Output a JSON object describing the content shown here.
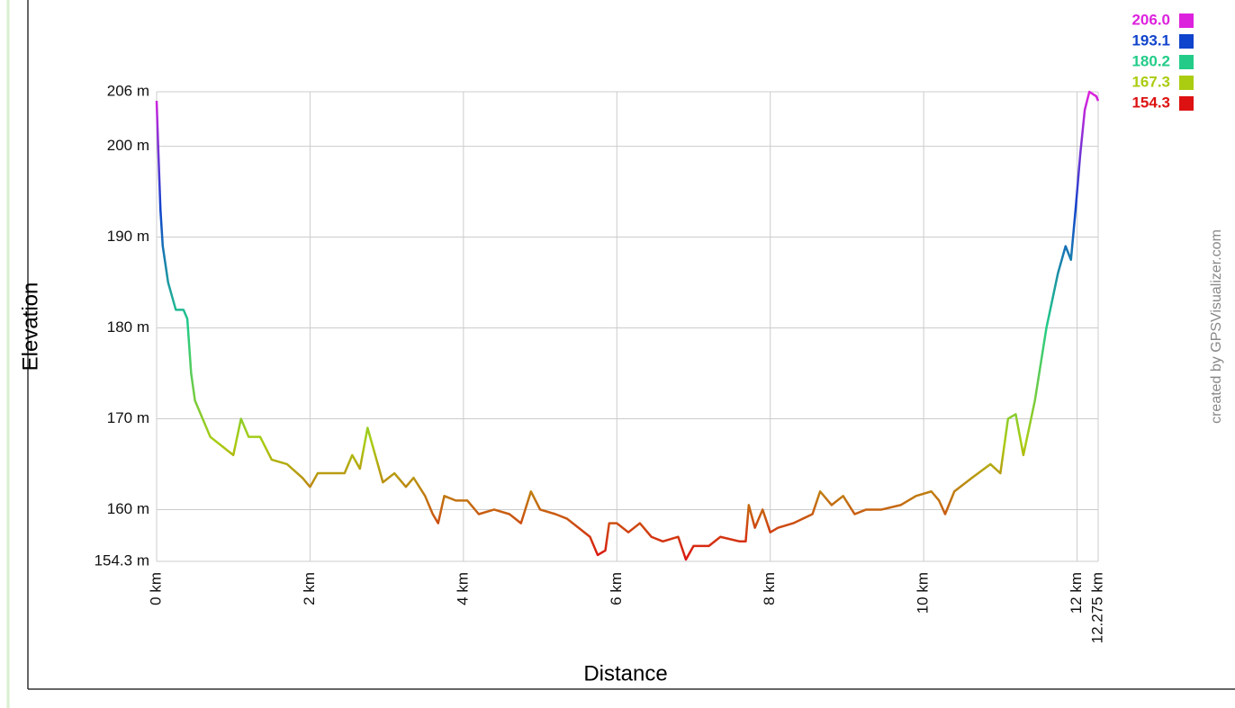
{
  "chart_data": {
    "type": "line",
    "x_label": "Distance",
    "y_label": "Elevation",
    "credit": "created by GPSVisualizer.com",
    "xlim": [
      0,
      12.275
    ],
    "xticks": [
      {
        "value": 0,
        "label": "0 km"
      },
      {
        "value": 2,
        "label": "2 km"
      },
      {
        "value": 4,
        "label": "4 km"
      },
      {
        "value": 6,
        "label": "6 km"
      },
      {
        "value": 8,
        "label": "8 km"
      },
      {
        "value": 10,
        "label": "10 km"
      },
      {
        "value": 12,
        "label": "12 km"
      },
      {
        "value": 12.275,
        "label": "12.275 km"
      }
    ],
    "ylim": [
      154.3,
      206
    ],
    "yticks": [
      {
        "value": 154.3,
        "label": "154.3 m"
      },
      {
        "value": 160,
        "label": "160 m"
      },
      {
        "value": 170,
        "label": "170 m"
      },
      {
        "value": 180,
        "label": "180 m"
      },
      {
        "value": 190,
        "label": "190 m"
      },
      {
        "value": 200,
        "label": "200 m"
      },
      {
        "value": 206,
        "label": "206 m"
      }
    ],
    "grid": true,
    "color_scale": [
      {
        "value": 206.0,
        "label": "206.0",
        "color": "#dd22dd"
      },
      {
        "value": 193.1,
        "label": "193.1",
        "color": "#1144cc"
      },
      {
        "value": 180.2,
        "label": "180.2",
        "color": "#22cc88"
      },
      {
        "value": 167.3,
        "label": "167.3",
        "color": "#aacc11"
      },
      {
        "value": 154.3,
        "label": "154.3",
        "color": "#dd1111"
      }
    ],
    "x": [
      0,
      0.02,
      0.05,
      0.08,
      0.15,
      0.25,
      0.35,
      0.4,
      0.45,
      0.5,
      0.6,
      0.7,
      0.85,
      1.0,
      1.1,
      1.2,
      1.35,
      1.5,
      1.7,
      1.9,
      2.0,
      2.1,
      2.3,
      2.45,
      2.55,
      2.65,
      2.75,
      2.85,
      2.95,
      3.1,
      3.25,
      3.35,
      3.5,
      3.6,
      3.67,
      3.75,
      3.9,
      4.05,
      4.2,
      4.4,
      4.6,
      4.75,
      4.88,
      5.0,
      5.2,
      5.35,
      5.5,
      5.65,
      5.75,
      5.85,
      5.9,
      6.0,
      6.15,
      6.3,
      6.45,
      6.6,
      6.8,
      6.9,
      7.0,
      7.2,
      7.35,
      7.6,
      7.68,
      7.72,
      7.8,
      7.9,
      8.0,
      8.1,
      8.3,
      8.55,
      8.65,
      8.8,
      8.95,
      9.1,
      9.25,
      9.45,
      9.7,
      9.9,
      10.1,
      10.2,
      10.28,
      10.4,
      10.63,
      10.87,
      11.0,
      11.1,
      11.2,
      11.3,
      11.45,
      11.6,
      11.75,
      11.85,
      11.92,
      11.98,
      12.04,
      12.1,
      12.16,
      12.25,
      12.275
    ],
    "values": [
      205,
      200,
      193,
      189,
      185,
      182,
      182,
      181,
      175,
      172,
      170,
      168,
      167,
      166,
      170,
      168,
      168,
      165.5,
      165,
      163.5,
      162.5,
      164,
      164,
      164,
      166,
      164.5,
      169,
      166,
      163,
      164,
      162.5,
      163.5,
      161.5,
      159.5,
      158.5,
      161.5,
      161,
      161,
      159.5,
      160,
      159.5,
      158.5,
      162,
      160,
      159.5,
      159,
      158,
      157,
      155,
      155.5,
      158.5,
      158.5,
      157.5,
      158.5,
      157,
      156.5,
      157,
      154.5,
      156,
      156,
      157,
      156.5,
      156.5,
      160.5,
      158,
      160,
      157.5,
      158,
      158.5,
      159.5,
      162,
      160.5,
      161.5,
      159.5,
      160,
      160,
      160.5,
      161.5,
      162,
      161,
      159.5,
      162,
      163.5,
      165,
      164,
      170,
      170.5,
      166,
      172,
      180,
      186,
      189,
      187.5,
      193,
      199,
      204,
      206,
      205.5,
      205
    ]
  }
}
